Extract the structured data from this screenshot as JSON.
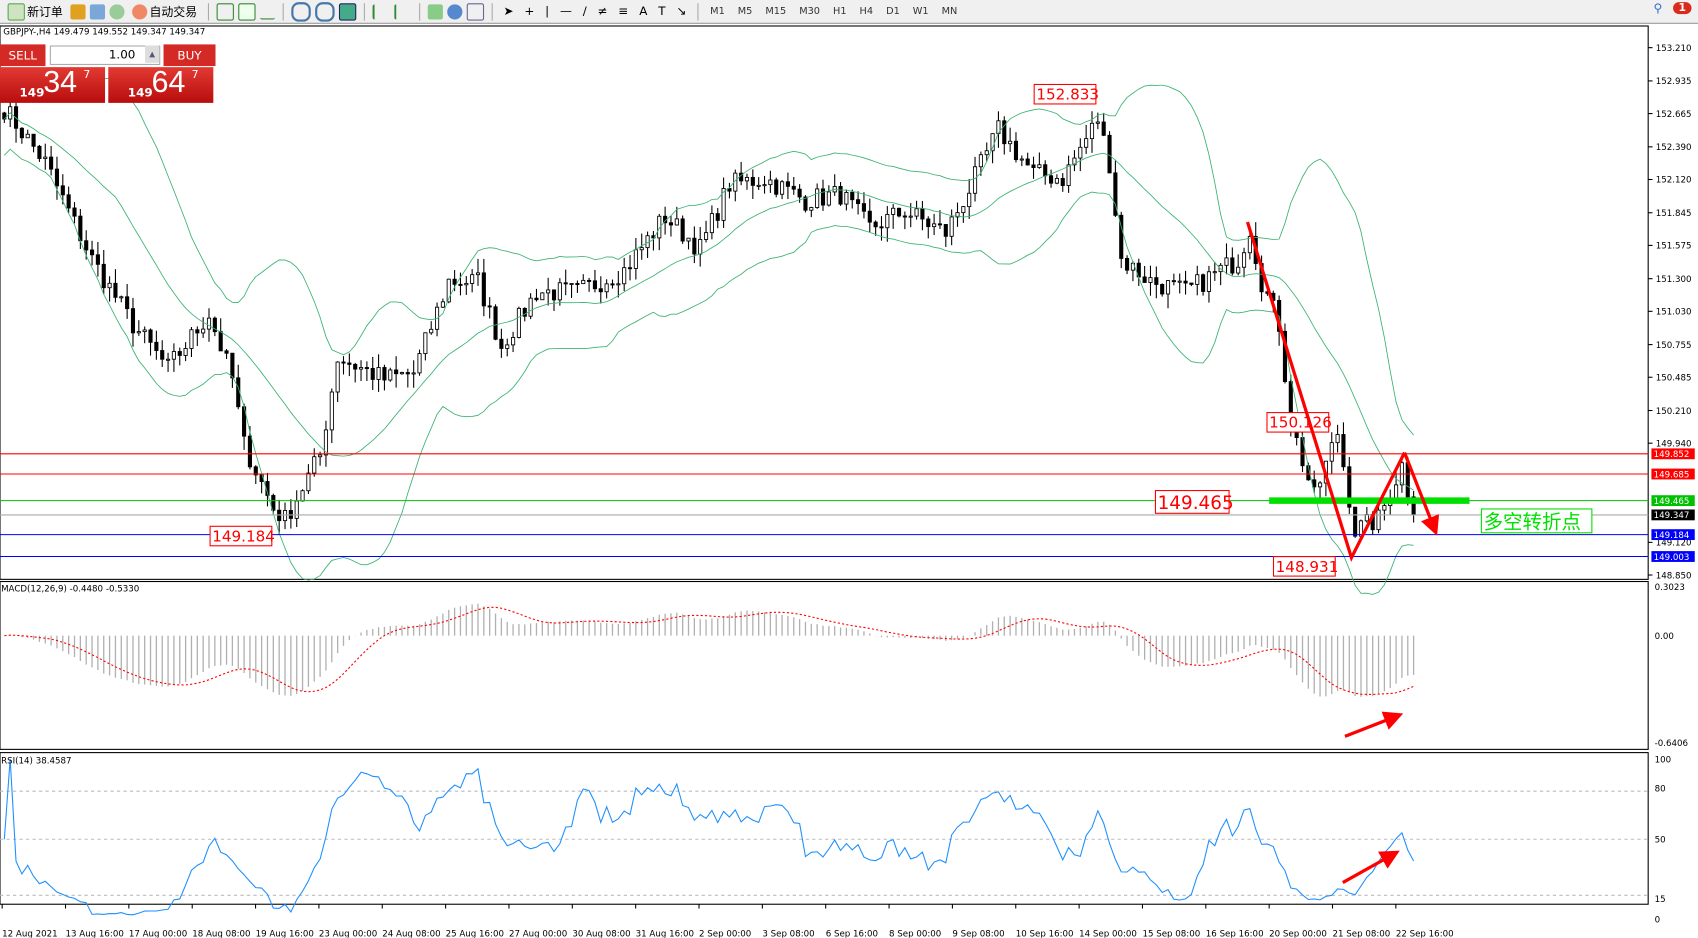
{
  "toolbar": {
    "new_order": "新订单",
    "auto_trade": "自动交易",
    "timeframes": [
      "M1",
      "M5",
      "M15",
      "M30",
      "H1",
      "H4",
      "D1",
      "W1",
      "MN"
    ],
    "notifications": "1"
  },
  "chart": {
    "header": "GBPJPY-,H4  149.479 149.552 149.347 149.347",
    "symbol": "GBPJPY-",
    "timeframe": "H4"
  },
  "trade_panel": {
    "sell": "SELL",
    "buy": "BUY",
    "lot": "1.00",
    "sell_prefix": "149",
    "sell_big": "34",
    "sell_sup": "7",
    "buy_prefix": "149",
    "buy_big": "64",
    "buy_sup": "7"
  },
  "price_axis": [
    "153.210",
    "152.935",
    "152.665",
    "152.390",
    "152.120",
    "151.845",
    "151.575",
    "151.300",
    "151.030",
    "150.755",
    "150.485",
    "150.210",
    "149.940",
    "149.120",
    "148.850"
  ],
  "price_lines": [
    {
      "price": 149.852,
      "label": "149.852",
      "color": "#ff0000"
    },
    {
      "price": 149.685,
      "label": "149.685",
      "color": "#ff0000"
    },
    {
      "price": 149.465,
      "label": "149.465",
      "color": "#00c000"
    },
    {
      "price": 149.347,
      "label": "149.347",
      "color": "#000000"
    },
    {
      "price": 149.184,
      "label": "149.184",
      "color": "#0000ff"
    },
    {
      "price": 149.003,
      "label": "149.003",
      "color": "#0000ff"
    }
  ],
  "annotations": {
    "high": "152.833",
    "mid_high": "150.126",
    "low_left": "149.184",
    "low_right": "148.931",
    "level": "149.465",
    "pivot_text": "多空转折点"
  },
  "macd": {
    "label": "MACD(12,26,9) -0.4480 -0.5330",
    "axis": [
      "0.3023",
      "0.00",
      "-0.6406"
    ]
  },
  "rsi": {
    "label": "RSI(14) 38.4587",
    "axis": [
      "100",
      "80",
      "50",
      "15",
      "0"
    ]
  },
  "time_axis": [
    "12 Aug 2021",
    "13 Aug 16:00",
    "17 Aug 00:00",
    "18 Aug 08:00",
    "19 Aug 16:00",
    "23 Aug 00:00",
    "24 Aug 08:00",
    "25 Aug 16:00",
    "27 Aug 00:00",
    "30 Aug 08:00",
    "31 Aug 16:00",
    "2 Sep 00:00",
    "3 Sep 08:00",
    "6 Sep 16:00",
    "8 Sep 00:00",
    "9 Sep 08:00",
    "10 Sep 16:00",
    "14 Sep 00:00",
    "15 Sep 08:00",
    "16 Sep 16:00",
    "20 Sep 00:00",
    "21 Sep 08:00",
    "22 Sep 16:00"
  ],
  "chart_data": {
    "type": "candlestick",
    "price_path": [
      [
        0,
        152.71
      ],
      [
        7,
        152.26
      ],
      [
        15,
        151.46
      ],
      [
        22,
        150.92
      ],
      [
        28,
        150.56
      ],
      [
        35,
        151.01
      ],
      [
        39,
        150.47
      ],
      [
        41,
        149.93
      ],
      [
        46,
        149.4
      ],
      [
        48,
        149.31
      ],
      [
        54,
        149.84
      ],
      [
        57,
        150.65
      ],
      [
        65,
        150.47
      ],
      [
        70,
        150.52
      ],
      [
        76,
        151.28
      ],
      [
        81,
        151.28
      ],
      [
        85,
        150.74
      ],
      [
        91,
        151.19
      ],
      [
        98,
        151.19
      ],
      [
        106,
        151.37
      ],
      [
        113,
        151.81
      ],
      [
        119,
        151.55
      ],
      [
        124,
        152.08
      ],
      [
        130,
        152.13
      ],
      [
        137,
        151.95
      ],
      [
        143,
        152.0
      ],
      [
        148,
        151.72
      ],
      [
        154,
        151.86
      ],
      [
        161,
        151.68
      ],
      [
        165,
        152.04
      ],
      [
        170,
        152.53
      ],
      [
        176,
        152.17
      ],
      [
        181,
        152.13
      ],
      [
        187,
        152.62
      ],
      [
        189,
        152.26
      ],
      [
        191,
        151.46
      ],
      [
        196,
        151.28
      ],
      [
        202,
        151.19
      ],
      [
        205,
        151.28
      ],
      [
        211,
        151.46
      ],
      [
        213,
        151.72
      ],
      [
        215,
        151.28
      ],
      [
        218,
        150.92
      ],
      [
        220,
        150.11
      ],
      [
        224,
        149.49
      ],
      [
        228,
        150.03
      ],
      [
        231,
        149.22
      ],
      [
        235,
        149.31
      ],
      [
        239,
        149.76
      ],
      [
        241,
        149.35
      ]
    ],
    "colors": {
      "bands": "#3cb371",
      "macd_signal": "#ff0000",
      "rsi": "#1e90ff",
      "arrows": "#ff0000"
    }
  }
}
